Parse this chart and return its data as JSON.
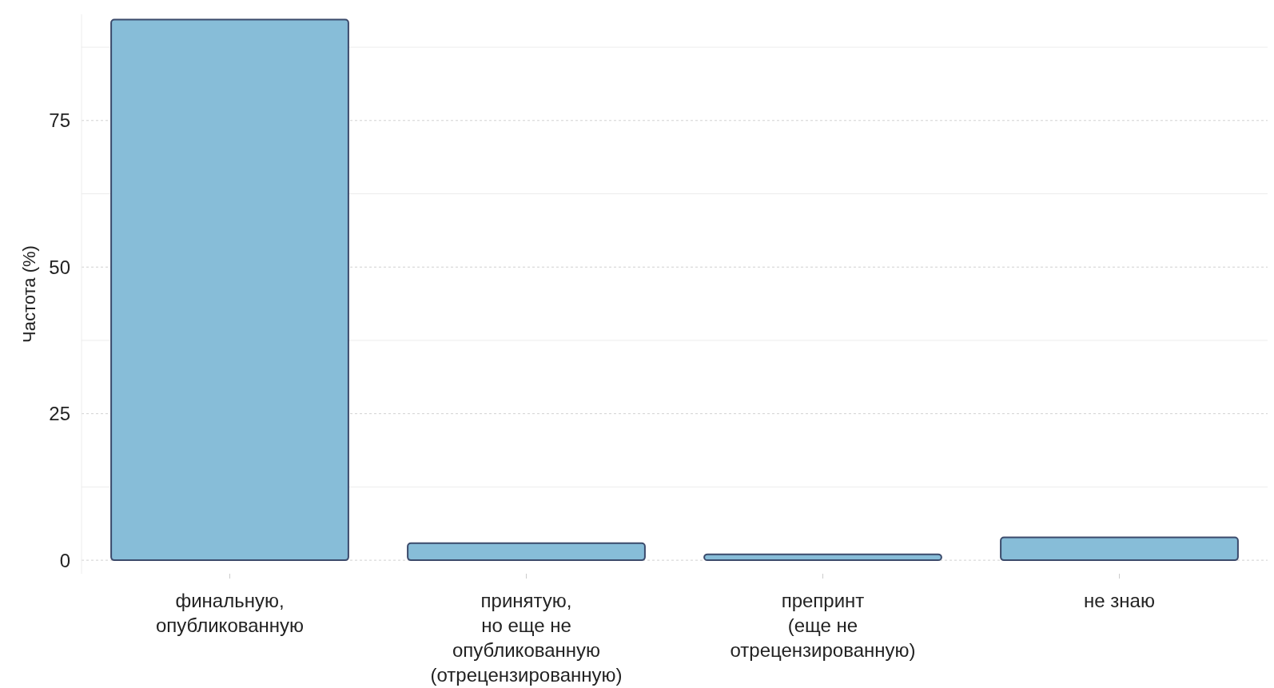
{
  "chart_data": {
    "type": "bar",
    "ylabel": "Частота (%)",
    "categories": [
      "финальную,\nопубликованную",
      "принятую,\nно еще не\nопубликованную\n(отрецензированную)",
      "препринт\n(еще не\nотрецензированную)",
      "не знаю"
    ],
    "values": [
      92.2,
      2.9,
      1.0,
      3.9
    ],
    "color": "#87bdd8",
    "ylim": [
      -2.3,
      93.1
    ],
    "yticks": [
      0,
      {
        "value": 12.5,
        "label": null
      },
      25,
      {
        "value": 37.5,
        "label": null
      },
      50,
      {
        "value": 62.5,
        "label": null
      },
      75,
      {
        "value": 87.5,
        "label": null
      }
    ],
    "grid": "y"
  }
}
